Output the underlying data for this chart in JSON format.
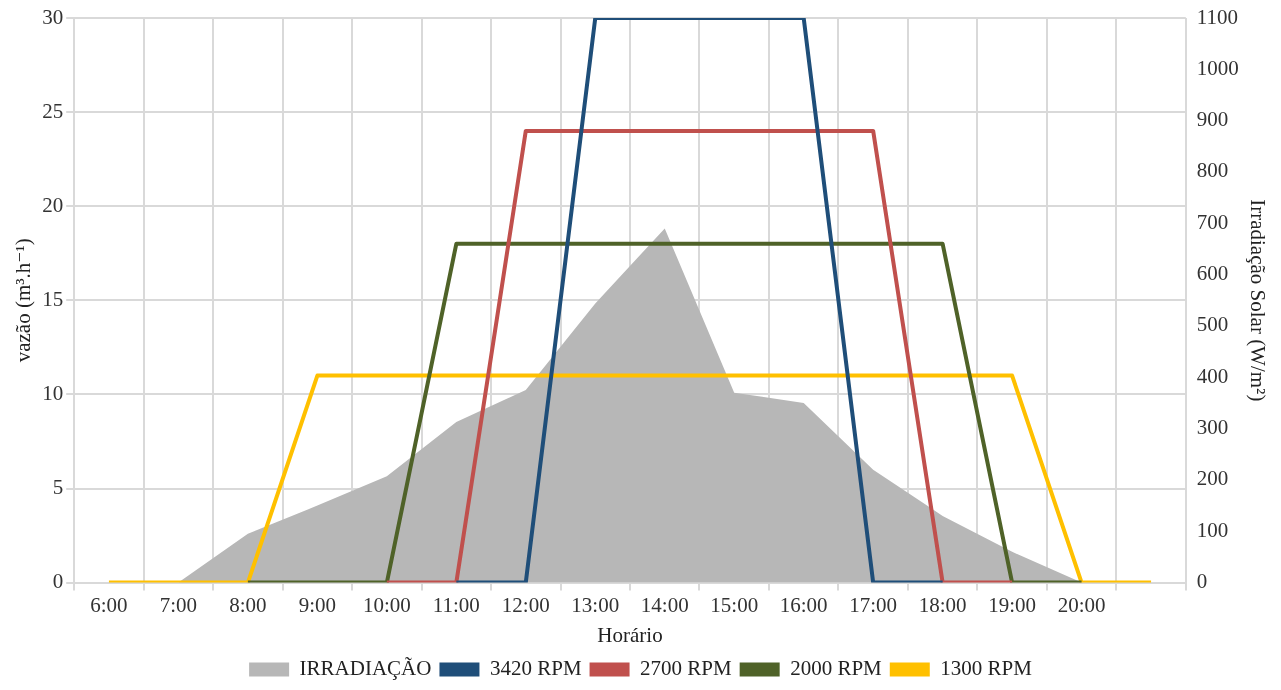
{
  "chart_data": {
    "type": "line",
    "xlabel": "Horário",
    "ylabel": "vazão (m³.h⁻¹)",
    "y2label": "Irradiação Solar (W/m²)",
    "categories": [
      "6:00",
      "7:00",
      "8:00",
      "9:00",
      "10:00",
      "11:00",
      "12:00",
      "13:00",
      "14:00",
      "15:00",
      "16:00",
      "17:00",
      "18:00",
      "19:00",
      "20:00",
      null
    ],
    "series": [
      {
        "name": "IRRADIAÇÃO",
        "type": "area",
        "axis": "y2",
        "color": "#b7b7b7",
        "values": [
          null,
          0,
          95,
          150,
          207,
          313,
          375,
          544,
          690,
          370,
          350,
          220,
          130,
          60,
          0,
          null
        ]
      },
      {
        "name": "3420 RPM",
        "color": "#1f4e79",
        "values": [
          null,
          null,
          null,
          null,
          null,
          0,
          0,
          30,
          30,
          30,
          30,
          0,
          0,
          null,
          null,
          null
        ]
      },
      {
        "name": "2700 RPM",
        "color": "#c0504d",
        "values": [
          null,
          null,
          null,
          null,
          0,
          0,
          24,
          24,
          24,
          24,
          24,
          24,
          0,
          0,
          null,
          null
        ]
      },
      {
        "name": "2000 RPM",
        "color": "#4f6228",
        "values": [
          null,
          null,
          0,
          0,
          0,
          18,
          18,
          18,
          18,
          18,
          18,
          18,
          18,
          0,
          0,
          null
        ]
      },
      {
        "name": "1300 RPM",
        "color": "#ffc000",
        "values": [
          0,
          0,
          0,
          11,
          11,
          11,
          11,
          11,
          11,
          11,
          11,
          11,
          11,
          11,
          0,
          0
        ]
      }
    ],
    "ylim": [
      0,
      30
    ],
    "yticks": [
      0,
      5,
      10,
      15,
      20,
      25,
      30
    ],
    "y2lim": [
      0,
      1100
    ],
    "y2ticks": [
      0,
      100,
      200,
      300,
      400,
      500,
      600,
      700,
      800,
      900,
      1000,
      1100
    ],
    "grid": true,
    "legend": "bottom",
    "marker": "none",
    "line_style": "solid"
  }
}
